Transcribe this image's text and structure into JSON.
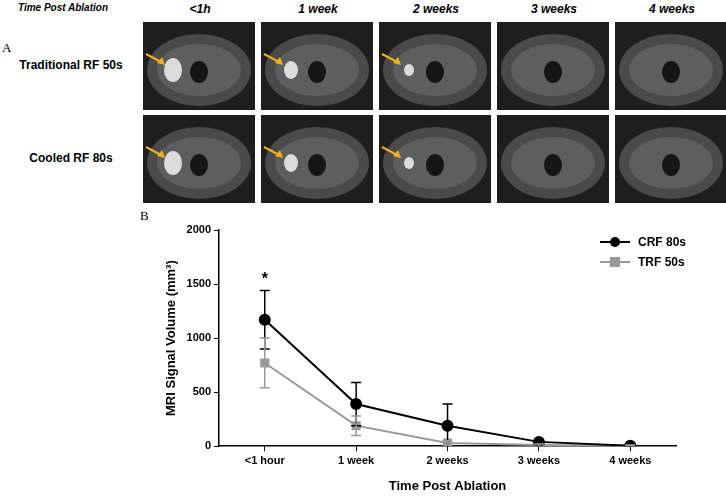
{
  "figure": {
    "panel_labels": [
      "A",
      "B"
    ],
    "images": {
      "header": "Time Post Ablation",
      "columns": [
        "<1h",
        "1 week",
        "2 weeks",
        "3 weeks",
        "4 weeks"
      ],
      "rows": [
        "Traditional RF 50s",
        "Cooled RF 80s"
      ]
    }
  },
  "chart_data": {
    "type": "line",
    "x_label": "Time Post Ablation",
    "y_label": "MRI Signal Volume (mm³)",
    "categories": [
      "<1 hour",
      "1 week",
      "2 weeks",
      "3 weeks",
      "4 weeks"
    ],
    "series": [
      {
        "name": "CRF 80s",
        "color": "#000000",
        "marker": "circle",
        "values": [
          1170,
          390,
          190,
          40,
          5
        ],
        "errors": [
          270,
          200,
          200,
          10,
          5
        ]
      },
      {
        "name": "TRF 50s",
        "color": "#999999",
        "marker": "square",
        "values": [
          770,
          190,
          30,
          10,
          5
        ],
        "errors": [
          230,
          90,
          20,
          10,
          5
        ]
      }
    ],
    "ylim": [
      0,
      2000
    ],
    "yticks": [
      0,
      500,
      1000,
      1500,
      2000
    ],
    "grid": false,
    "legend": "upper right",
    "annotations": [
      {
        "text": "*",
        "category": "<1 hour"
      }
    ]
  }
}
